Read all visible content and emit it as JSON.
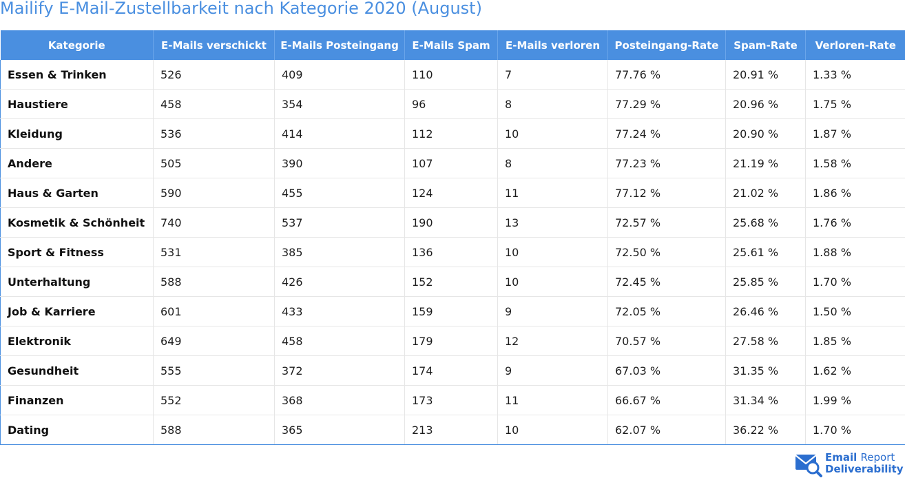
{
  "chart_data": {
    "type": "table",
    "title": "Mailify E-Mail-Zustellbarkeit nach Kategorie 2020 (August)",
    "columns": [
      "Kategorie",
      "E-Mails verschickt",
      "E-Mails Posteingang",
      "E-Mails Spam",
      "E-Mails verloren",
      "Posteingang-Rate",
      "Spam-Rate",
      "Verloren-Rate"
    ],
    "rows": [
      [
        "Essen & Trinken",
        "526",
        "409",
        "110",
        "7",
        "77.76 %",
        "20.91 %",
        "1.33 %"
      ],
      [
        "Haustiere",
        "458",
        "354",
        "96",
        "8",
        "77.29 %",
        "20.96 %",
        "1.75 %"
      ],
      [
        "Kleidung",
        "536",
        "414",
        "112",
        "10",
        "77.24 %",
        "20.90 %",
        "1.87 %"
      ],
      [
        "Andere",
        "505",
        "390",
        "107",
        "8",
        "77.23 %",
        "21.19 %",
        "1.58 %"
      ],
      [
        "Haus & Garten",
        "590",
        "455",
        "124",
        "11",
        "77.12 %",
        "21.02 %",
        "1.86 %"
      ],
      [
        "Kosmetik & Schönheit",
        "740",
        "537",
        "190",
        "13",
        "72.57 %",
        "25.68 %",
        "1.76 %"
      ],
      [
        "Sport & Fitness",
        "531",
        "385",
        "136",
        "10",
        "72.50 %",
        "25.61 %",
        "1.88 %"
      ],
      [
        "Unterhaltung",
        "588",
        "426",
        "152",
        "10",
        "72.45 %",
        "25.85 %",
        "1.70 %"
      ],
      [
        "Job & Karriere",
        "601",
        "433",
        "159",
        "9",
        "72.05 %",
        "26.46 %",
        "1.50 %"
      ],
      [
        "Elektronik",
        "649",
        "458",
        "179",
        "12",
        "70.57 %",
        "27.58 %",
        "1.85 %"
      ],
      [
        "Gesundheit",
        "555",
        "372",
        "174",
        "9",
        "67.03 %",
        "31.35 %",
        "1.62 %"
      ],
      [
        "Finanzen",
        "552",
        "368",
        "173",
        "11",
        "66.67 %",
        "31.34 %",
        "1.99 %"
      ],
      [
        "Dating",
        "588",
        "365",
        "213",
        "10",
        "62.07 %",
        "36.22 %",
        "1.70 %"
      ]
    ]
  },
  "brand": {
    "line1_bold": "Email",
    "line1_light": "Report",
    "line2": "Deliverability",
    "icon": "envelope-magnifier-icon",
    "color": "#2b6ecf"
  },
  "colors": {
    "title": "#4a8fe0",
    "header_bg": "#4a8fe0",
    "header_text": "#ffffff"
  }
}
